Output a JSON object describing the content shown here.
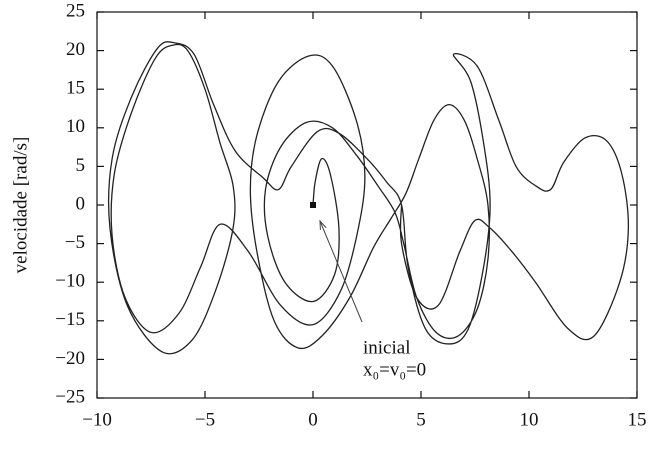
{
  "chart_data": {
    "type": "line",
    "y_label": "velocidade [rad/s]",
    "xlim": [
      -10,
      15
    ],
    "ylim": [
      -25,
      25
    ],
    "xticks": [
      {
        "value": -10,
        "label": "−10"
      },
      {
        "value": -5,
        "label": "−5"
      },
      0,
      5,
      10,
      15
    ],
    "yticks": [
      {
        "value": -25,
        "label": "−25"
      },
      {
        "value": -20,
        "label": "−20"
      },
      {
        "value": -15,
        "label": "−15"
      },
      {
        "value": -10,
        "label": "−10"
      },
      {
        "value": -5,
        "label": "−5"
      },
      0,
      5,
      10,
      15,
      20,
      25
    ],
    "series": [
      {
        "color": "#222222",
        "x": [
          0,
          0.1,
          0.4,
          0.8,
          1.2,
          1.0,
          0,
          -1.3,
          -2.1,
          -2.2,
          -1.5,
          -0.3,
          0.9,
          2,
          3,
          3.8,
          4.2,
          4.8,
          5.7,
          6.7,
          7.6,
          8.1,
          8.1,
          7.6,
          7,
          6.3,
          5.6,
          4.9,
          4.3,
          3.6,
          2.8,
          1.7,
          0.4,
          -0.7,
          -1.8,
          -2.6,
          -2.9,
          -2.6,
          -1.6,
          -0.2,
          0.9,
          2,
          2.4,
          2.1,
          1.3,
          0,
          -1.5,
          -3,
          -4.3,
          -5.2,
          -6.2,
          -7.5,
          -8.7,
          -9.3,
          -9.2,
          -8.4,
          -7.3,
          -6.5,
          -5.8,
          -5,
          -4.3,
          -3.7,
          -3.7,
          -4.5,
          -5.6,
          -7,
          -8.6,
          -9.4,
          -9.3,
          -8.4,
          -7.2,
          -6.4,
          -5.5,
          -4.6,
          -3.6,
          -2.3,
          -1.6,
          -1,
          0.2,
          1.2,
          2.5,
          3.4,
          4.1,
          4.4,
          5.2,
          6.3,
          7.2,
          7.9,
          8.2,
          7.9,
          7.3,
          6.5,
          7.6,
          8.6,
          9.4,
          10.3,
          11,
          11.6,
          12.6,
          13.6,
          14.3,
          14.6,
          14.2,
          13,
          11.8,
          10.3,
          9.2,
          8.2,
          7.5,
          6.8,
          5.8,
          4.8,
          4.1,
          4.1
        ],
        "values": [
          0,
          3,
          6,
          4,
          -3,
          -9,
          -12.5,
          -10,
          -4,
          2,
          7.5,
          10.7,
          10,
          6.5,
          2.5,
          -1,
          -5,
          -12,
          -16.5,
          -17,
          -13.5,
          -7,
          0,
          6,
          11,
          13,
          11,
          6,
          1.5,
          -1.8,
          -5.5,
          -12,
          -17,
          -18.5,
          -15,
          -6,
          2,
          9,
          16,
          19.3,
          18,
          11,
          4,
          -3,
          -11,
          -15.5,
          -13,
          -6,
          -2.5,
          -8,
          -14,
          -16.5,
          -12,
          -4,
          4,
          12,
          19,
          20.7,
          20,
          15,
          8,
          2.5,
          -3,
          -11,
          -17.5,
          -19,
          -13,
          -3,
          6,
          14,
          20.3,
          21,
          19.5,
          13,
          7,
          3.5,
          2,
          5,
          9.5,
          9.3,
          6,
          3,
          0,
          -8,
          -16,
          -18,
          -16,
          -8,
          0,
          8,
          16,
          19.5,
          18,
          11,
          5,
          2.5,
          2,
          5.5,
          8.7,
          8.3,
          4,
          -3,
          -10,
          -17,
          -16,
          -10,
          -6,
          -3,
          -2,
          -6,
          -13,
          -12,
          -5,
          0
        ]
      }
    ],
    "start_point": {
      "x": 0,
      "y": 0
    },
    "annotation": [
      "inicial",
      "x₀=v₀=0"
    ]
  }
}
